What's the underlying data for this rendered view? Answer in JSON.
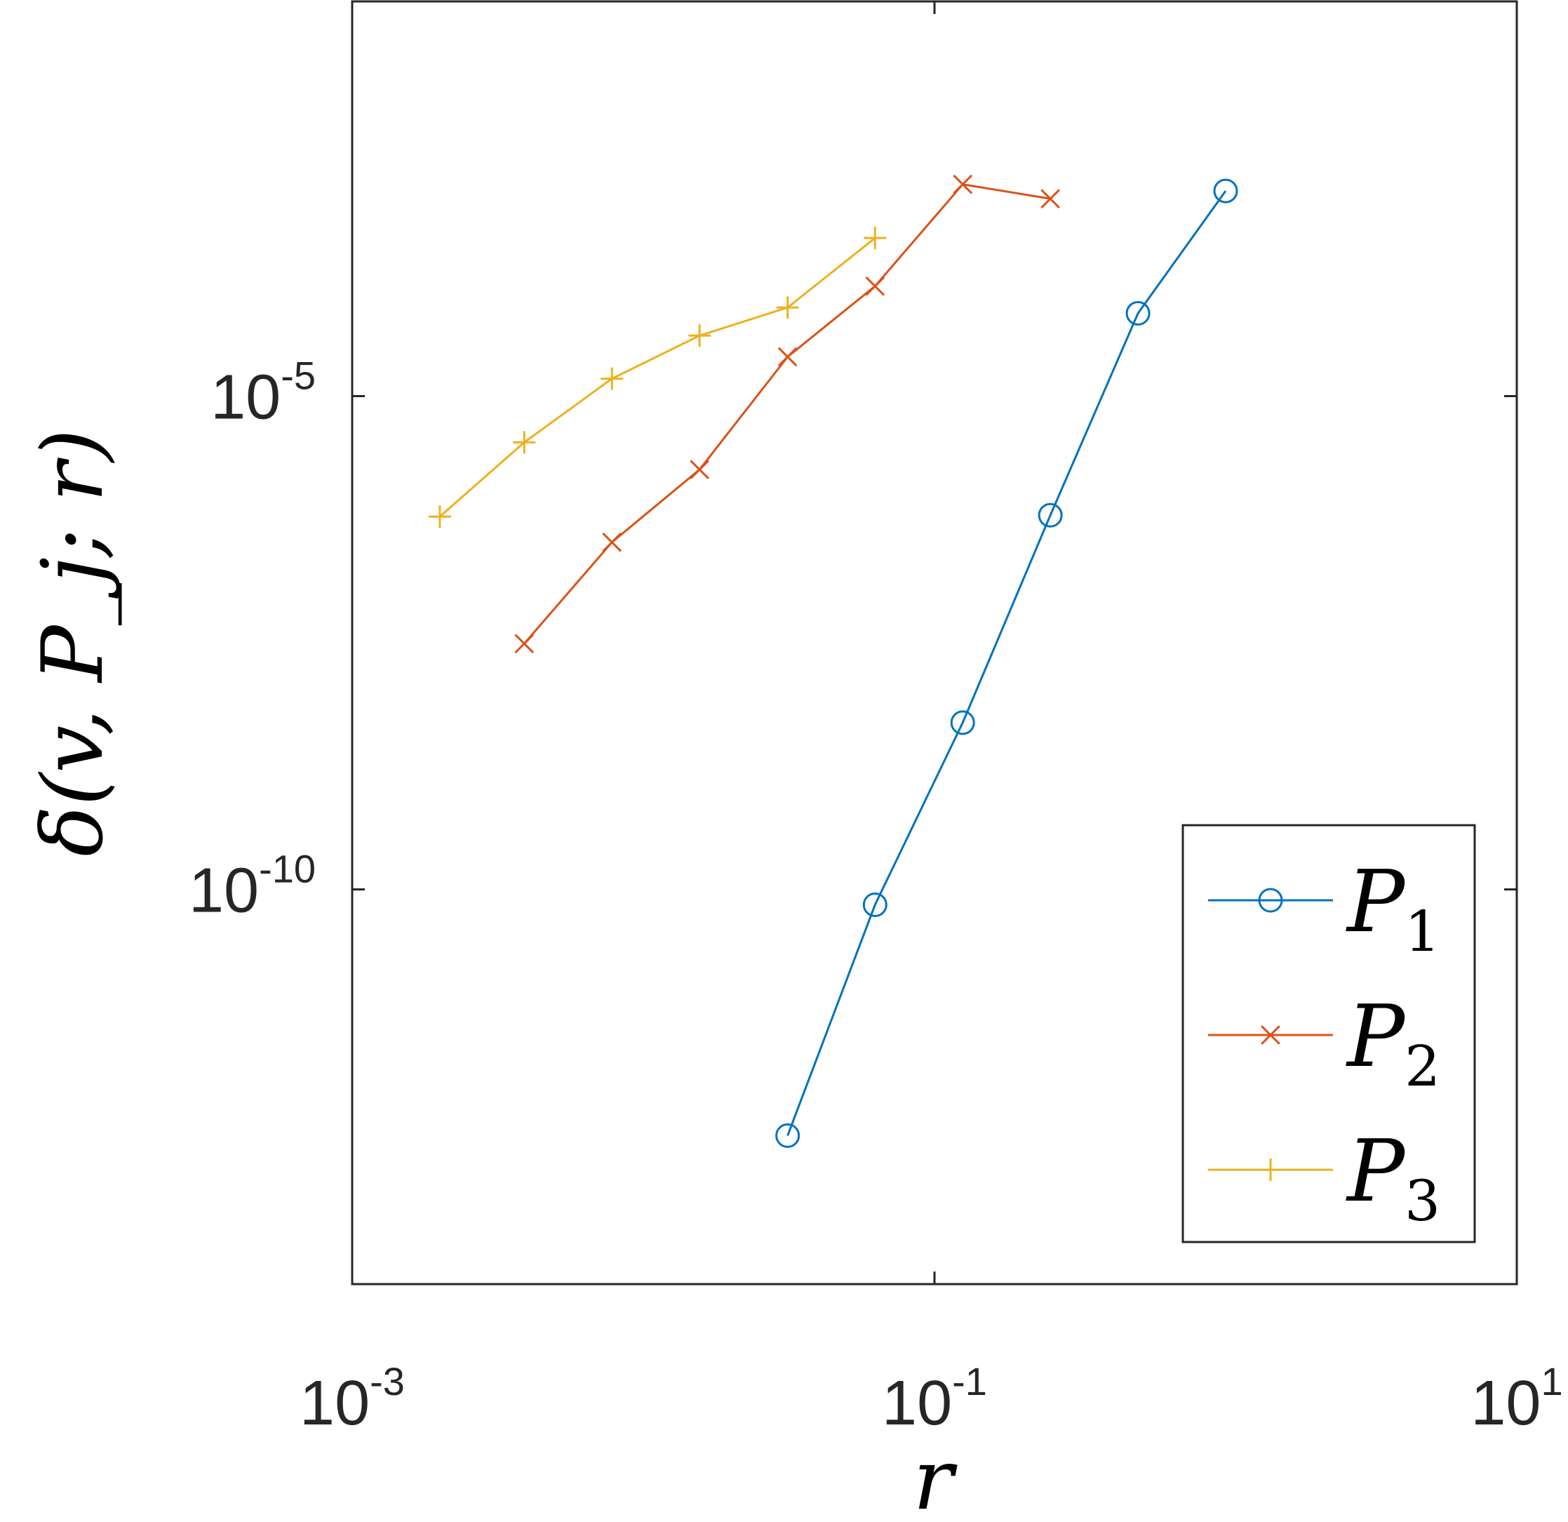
{
  "chart_data": {
    "type": "line",
    "xscale": "log",
    "yscale": "log",
    "xlim": [
      0.001,
      10
    ],
    "ylim": [
      1e-14,
      0.1
    ],
    "xticks": [
      {
        "value": 0.001,
        "base": "10",
        "exp": "-3"
      },
      {
        "value": 0.1,
        "base": "10",
        "exp": "-1"
      },
      {
        "value": 10,
        "base": "10",
        "exp": "1"
      }
    ],
    "yticks": [
      {
        "value": 1e-10,
        "base": "10",
        "exp": "-10"
      },
      {
        "value": 1e-05,
        "base": "10",
        "exp": "-5"
      }
    ],
    "xlabel": "r",
    "ylabel": "δ(v, P_j; r)",
    "grid": false,
    "legend_position": "bottom-right",
    "series": [
      {
        "name": "P1",
        "label_base": "P",
        "label_sub": "1",
        "color": "#0072BD",
        "marker": "circle",
        "x": [
          0.0313,
          0.0625,
          0.125,
          0.25,
          0.5,
          1.0
        ],
        "y": [
          3.2e-13,
          7e-11,
          4.9e-09,
          6.2e-07,
          6.9e-05,
          0.0012
        ]
      },
      {
        "name": "P2",
        "label_base": "P",
        "label_sub": "2",
        "color": "#D95319",
        "marker": "x",
        "x": [
          0.0039,
          0.0078,
          0.0156,
          0.0313,
          0.0625,
          0.125,
          0.25
        ],
        "y": [
          3.1e-08,
          3.3e-07,
          1.8e-06,
          2.5e-05,
          0.00013,
          0.0014,
          0.001
        ]
      },
      {
        "name": "P3",
        "label_base": "P",
        "label_sub": "3",
        "color": "#EDB120",
        "marker": "plus",
        "x": [
          0.002,
          0.0039,
          0.0078,
          0.0156,
          0.0313,
          0.0625
        ],
        "y": [
          6e-07,
          3.4e-06,
          1.5e-05,
          4.1e-05,
          7.9e-05,
          0.0004
        ]
      }
    ]
  }
}
